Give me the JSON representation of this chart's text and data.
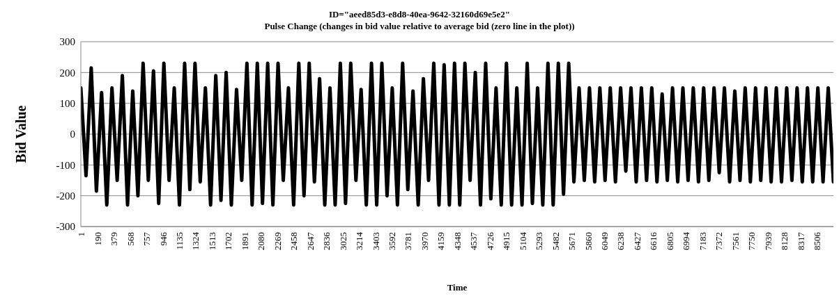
{
  "chart_data": {
    "type": "line",
    "title": "ID=\"aeed85d3-e8d8-40ea-9642-32160d69e5e2\"",
    "subtitle": "Pulse Change (changes in bid value relative to average bid (zero line in the plot))",
    "xlabel": "Time",
    "ylabel": "Bid Value",
    "x": [
      1,
      61,
      121,
      181,
      241,
      301,
      361,
      421,
      481,
      541,
      601,
      661,
      721,
      781,
      841,
      901,
      961,
      1021,
      1081,
      1141,
      1201,
      1261,
      1321,
      1381,
      1441,
      1501,
      1561,
      1621,
      1681,
      1741,
      1801,
      1861,
      1921,
      1981,
      2041,
      2101,
      2161,
      2221,
      2281,
      2341,
      2401,
      2461,
      2521,
      2581,
      2641,
      2701,
      2761,
      2821,
      2881,
      2941,
      3001,
      3061,
      3121,
      3181,
      3241,
      3301,
      3361,
      3421,
      3481,
      3541,
      3601,
      3661,
      3721,
      3781,
      3841,
      3901,
      3961,
      4021,
      4081,
      4141,
      4201,
      4261,
      4321,
      4381,
      4441,
      4501,
      4561,
      4621,
      4681,
      4741,
      4801,
      4861,
      4921,
      4981,
      5041,
      5101,
      5161,
      5221,
      5281,
      5341,
      5401,
      5461,
      5521,
      5581,
      5641,
      5701,
      5761,
      5821,
      5881,
      5941,
      6001,
      6061,
      6121,
      6181,
      6241,
      6301,
      6361,
      6421,
      6481,
      6541,
      6601,
      6661,
      6721,
      6781,
      6841,
      6901,
      6961,
      7021,
      7081,
      7141,
      7201,
      7261,
      7321,
      7381,
      7441,
      7501,
      7561,
      7621,
      7681,
      7741,
      7801,
      7861,
      7921,
      7981,
      8041,
      8101,
      8161,
      8221,
      8281,
      8341,
      8401,
      8461,
      8521,
      8581,
      8641,
      8701
    ],
    "series": [
      {
        "color": "#000000",
        "values": [
          150,
          -135,
          215,
          -185,
          135,
          -230,
          150,
          -150,
          190,
          -230,
          140,
          -200,
          230,
          -150,
          205,
          -225,
          230,
          -150,
          150,
          -230,
          230,
          -180,
          230,
          -155,
          150,
          -230,
          190,
          -215,
          200,
          -230,
          145,
          -150,
          230,
          -230,
          230,
          -225,
          230,
          -230,
          230,
          -150,
          150,
          -230,
          230,
          -200,
          230,
          -155,
          180,
          -230,
          150,
          -230,
          230,
          -225,
          230,
          -150,
          145,
          -230,
          230,
          -230,
          230,
          -200,
          150,
          -230,
          230,
          -180,
          140,
          -230,
          180,
          -150,
          230,
          -230,
          225,
          -230,
          230,
          -230,
          230,
          -150,
          200,
          -230,
          230,
          -210,
          150,
          -230,
          230,
          -230,
          150,
          -230,
          230,
          -225,
          150,
          -230,
          230,
          -230,
          230,
          -195,
          230,
          -155,
          150,
          -150,
          150,
          -155,
          150,
          -150,
          150,
          -155,
          150,
          -120,
          150,
          -155,
          150,
          -150,
          150,
          -155,
          130,
          -150,
          150,
          -155,
          150,
          -150,
          150,
          -155,
          150,
          -150,
          150,
          -125,
          150,
          -155,
          140,
          -150,
          150,
          -155,
          150,
          -150,
          150,
          -155,
          150,
          -155,
          150,
          -150,
          150,
          -155,
          150,
          -155,
          150,
          -155,
          150,
          -155
        ]
      }
    ],
    "xlim": [
      1,
      8701
    ],
    "xticks": [
      1,
      190,
      379,
      568,
      757,
      946,
      1135,
      1324,
      1513,
      1702,
      1891,
      2080,
      2269,
      2458,
      2647,
      2836,
      3025,
      3214,
      3403,
      3592,
      3781,
      3970,
      4159,
      4348,
      4537,
      4726,
      4915,
      5104,
      5293,
      5482,
      5671,
      5860,
      6049,
      6238,
      6427,
      6616,
      6805,
      6994,
      7183,
      7372,
      7561,
      7750,
      7939,
      8128,
      8317,
      8506
    ],
    "ylim": [
      -300,
      300
    ],
    "yticks": [
      -300,
      -200,
      -100,
      0,
      100,
      200,
      300
    ],
    "grid": "y",
    "legend": false,
    "marker": "none",
    "line_style": "solid"
  }
}
